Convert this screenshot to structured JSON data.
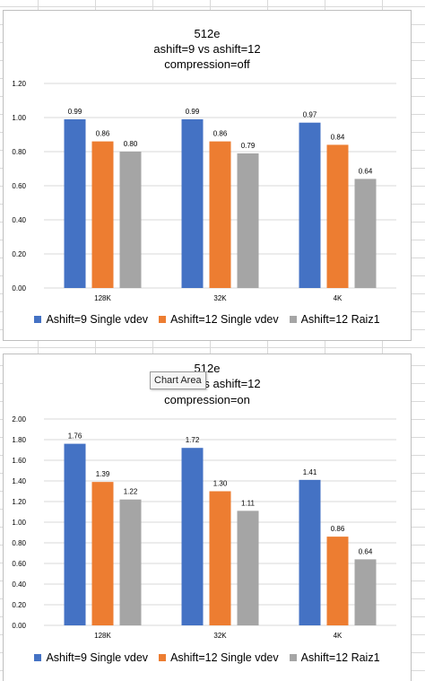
{
  "tooltip": {
    "text": "Chart Area"
  },
  "chart_data": [
    {
      "type": "bar",
      "title_lines": [
        "512e",
        "ashift=9 vs ashift=12",
        "compression=off"
      ],
      "categories": [
        "128K",
        "32K",
        "4K"
      ],
      "series": [
        {
          "name": "Ashift=9 Single vdev",
          "color": "#4472C4",
          "values": [
            0.99,
            0.99,
            0.97
          ]
        },
        {
          "name": "Ashift=12 Single vdev",
          "color": "#ED7D31",
          "values": [
            0.86,
            0.86,
            0.84
          ]
        },
        {
          "name": "Ashift=12 Raiz1",
          "color": "#A5A5A5",
          "values": [
            0.8,
            0.79,
            0.64
          ]
        }
      ],
      "data_labels": [
        [
          "0.99",
          "0.86",
          "0.80"
        ],
        [
          "0.99",
          "0.86",
          "0.79"
        ],
        [
          "0.97",
          "0.84",
          "0.64"
        ]
      ],
      "yticks": [
        "0.00",
        "0.20",
        "0.40",
        "0.60",
        "0.80",
        "1.00",
        "1.20"
      ],
      "ylim": [
        0,
        1.2
      ],
      "grid": true,
      "legend": "bottom"
    },
    {
      "type": "bar",
      "title_lines": [
        "512e",
        "ashift=9 vs ashift=12",
        "compression=on"
      ],
      "categories": [
        "128K",
        "32K",
        "4K"
      ],
      "series": [
        {
          "name": "Ashift=9 Single vdev",
          "color": "#4472C4",
          "values": [
            1.76,
            1.72,
            1.41
          ]
        },
        {
          "name": "Ashift=12 Single vdev",
          "color": "#ED7D31",
          "values": [
            1.39,
            1.3,
            0.86
          ]
        },
        {
          "name": "Ashift=12 Raiz1",
          "color": "#A5A5A5",
          "values": [
            1.22,
            1.11,
            0.64
          ]
        }
      ],
      "data_labels": [
        [
          "1.76",
          "1.39",
          "1.22"
        ],
        [
          "1.72",
          "1.30",
          "1.11"
        ],
        [
          "1.41",
          "0.86",
          "0.64"
        ]
      ],
      "yticks": [
        "0.00",
        "0.20",
        "0.40",
        "0.60",
        "0.80",
        "1.00",
        "1.20",
        "1.40",
        "1.60",
        "1.80",
        "2.00"
      ],
      "ylim": [
        0,
        2.0
      ],
      "grid": true,
      "legend": "bottom"
    }
  ]
}
